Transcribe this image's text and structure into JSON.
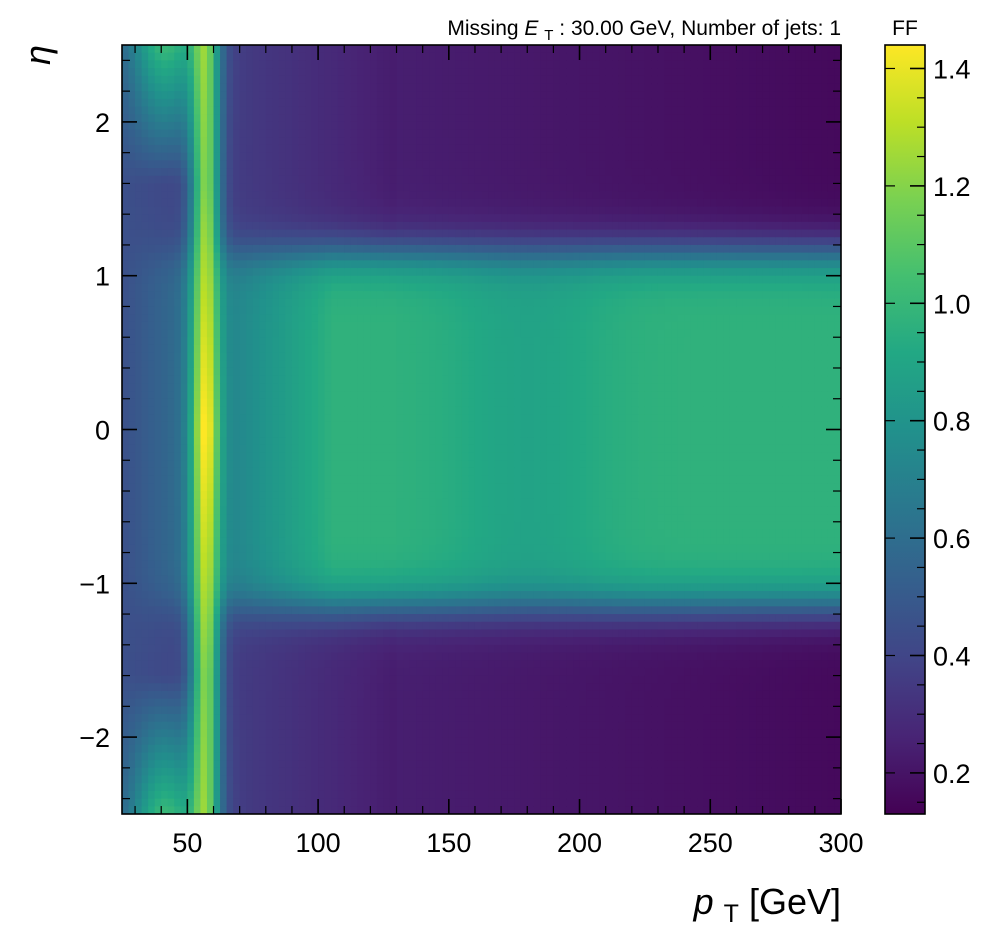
{
  "chart_data": {
    "type": "heatmap",
    "title_info": {
      "missing_et_label": "Missing",
      "missing_et_symbol": "E",
      "missing_et_subscript": "T",
      "missing_et_value": ": 30.00 GeV, Number of jets: 1"
    },
    "xlabel": {
      "symbol": "p",
      "subscript": "T",
      "unit": " [GeV]"
    },
    "ylabel": "η",
    "xlim": [
      25,
      300
    ],
    "ylim": [
      -2.5,
      2.5
    ],
    "x_ticks": [
      50,
      100,
      150,
      200,
      250,
      300
    ],
    "x_tick_labels": [
      "50",
      "100",
      "150",
      "200",
      "250",
      "300"
    ],
    "y_ticks": [
      -2,
      -1,
      0,
      1,
      2
    ],
    "y_tick_labels": [
      "−2",
      "−1",
      "0",
      "1",
      "2"
    ],
    "colorbar": {
      "label": "FF",
      "colormap": "viridis",
      "range": [
        0.13,
        1.44
      ],
      "ticks": [
        0.2,
        0.4,
        0.6,
        0.8,
        1.0,
        1.2,
        1.4
      ],
      "tick_labels": [
        "0.2",
        "0.4",
        "0.6",
        "0.8",
        "1.0",
        "1.2",
        "1.4"
      ]
    },
    "z_approx": {
      "description_values": {
        "peak_near_pt_57_eta_0": 1.42,
        "central_band_pt_100_to_300": 0.98,
        "forward_region_high_pt": 0.18
      }
    }
  }
}
